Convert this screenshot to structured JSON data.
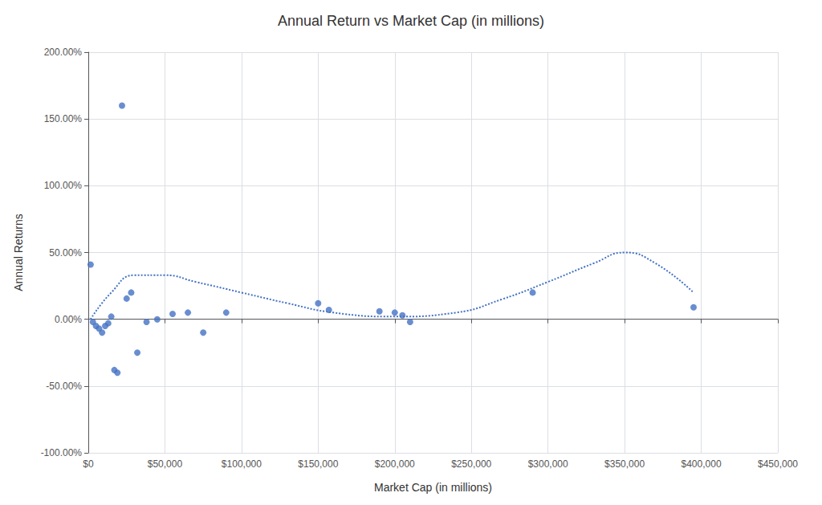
{
  "chart_data": {
    "type": "scatter",
    "title": "Annual Return vs Market Cap (in millions)",
    "xlabel": "Market Cap (in millions)",
    "ylabel": "Annual Returns",
    "series": [
      {
        "type": "scatter",
        "color": "#4472C4",
        "marker": "circle",
        "x": [
          1500,
          3000,
          5000,
          7000,
          9000,
          11000,
          13000,
          15000,
          17000,
          19000,
          22000,
          25000,
          28000,
          32000,
          38000,
          45000,
          55000,
          65000,
          75000,
          90000,
          150000,
          157000,
          190000,
          200000,
          205000,
          210000,
          290000,
          395000
        ],
        "values": [
          0.41,
          -0.02,
          -0.05,
          -0.07,
          -0.1,
          -0.05,
          -0.03,
          0.02,
          -0.38,
          -0.4,
          1.6,
          0.155,
          0.2,
          -0.25,
          -0.02,
          0.0,
          0.04,
          0.05,
          -0.1,
          0.05,
          0.12,
          0.07,
          0.06,
          0.05,
          0.03,
          -0.02,
          0.2,
          0.09
        ]
      },
      {
        "type": "line",
        "color": "#4472C4",
        "line_style": "dotted",
        "x": [
          1500,
          15000,
          30000,
          50000,
          70000,
          100000,
          130000,
          160000,
          200000,
          240000,
          270000,
          300000,
          330000,
          350000,
          370000,
          395000
        ],
        "values": [
          0.0,
          0.2,
          0.33,
          0.33,
          0.28,
          0.2,
          0.12,
          0.05,
          0.02,
          0.05,
          0.15,
          0.28,
          0.42,
          0.5,
          0.42,
          0.2
        ]
      }
    ],
    "xlim": [
      0,
      450000
    ],
    "ylim": [
      -1.0,
      2.0
    ],
    "xticks": [
      {
        "value": 0,
        "label": "$0"
      },
      {
        "value": 50000,
        "label": "$50,000"
      },
      {
        "value": 100000,
        "label": "$100,000"
      },
      {
        "value": 150000,
        "label": "$150,000"
      },
      {
        "value": 200000,
        "label": "$200,000"
      },
      {
        "value": 250000,
        "label": "$250,000"
      },
      {
        "value": 300000,
        "label": "$300,000"
      },
      {
        "value": 350000,
        "label": "$350,000"
      },
      {
        "value": 400000,
        "label": "$400,000"
      },
      {
        "value": 450000,
        "label": "$450,000"
      }
    ],
    "yticks": [
      {
        "value": -1.0,
        "label": "-100.00%"
      },
      {
        "value": -0.5,
        "label": "-50.00%"
      },
      {
        "value": 0.0,
        "label": "0.00%"
      },
      {
        "value": 0.5,
        "label": "50.00%"
      },
      {
        "value": 1.0,
        "label": "100.00%"
      },
      {
        "value": 1.5,
        "label": "150.00%"
      },
      {
        "value": 2.0,
        "label": "200.00%"
      }
    ],
    "grid": true
  }
}
